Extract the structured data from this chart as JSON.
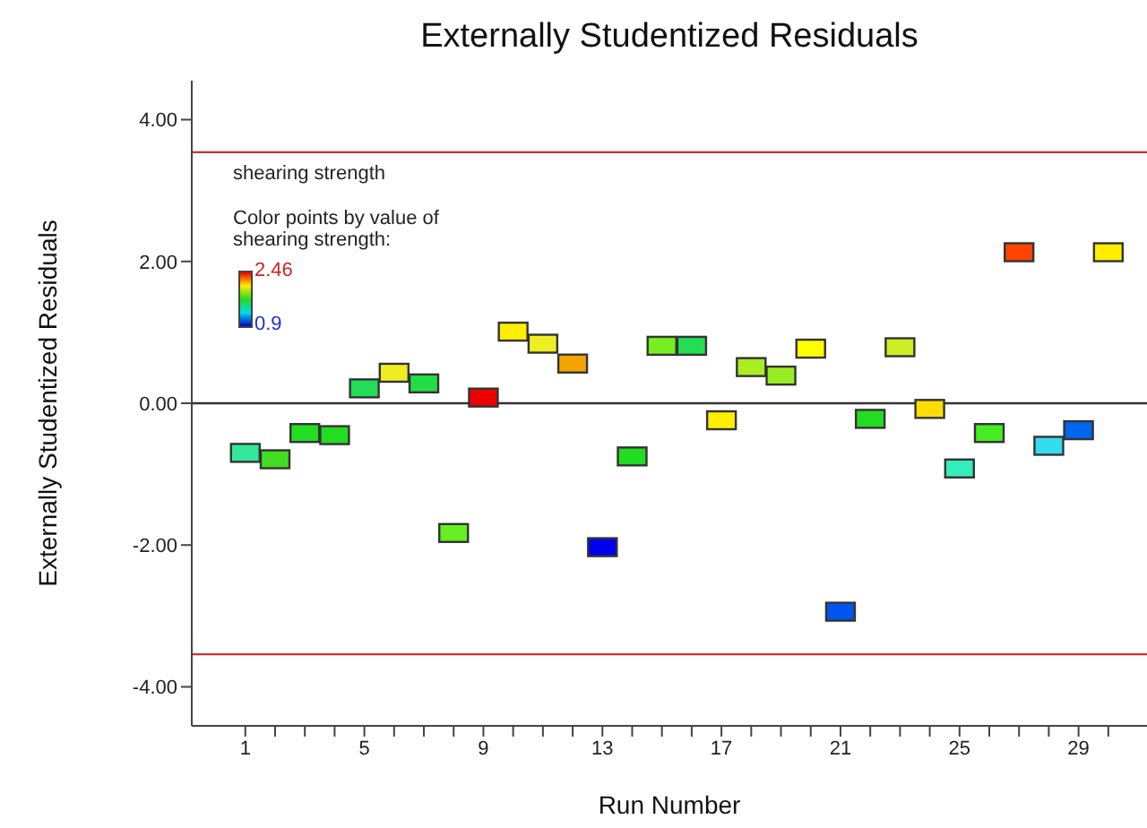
{
  "chart_data": {
    "type": "scatter",
    "title": "Externally Studentized Residuals",
    "xlabel": "Run Number",
    "ylabel": "Externally Studentized Residuals",
    "annotations": [
      "shearing strength",
      "Color points by value of shearing strength:",
      "2.46",
      "0.9"
    ],
    "x": [
      1,
      2,
      3,
      4,
      5,
      6,
      7,
      8,
      9,
      10,
      11,
      12,
      13,
      14,
      15,
      16,
      17,
      18,
      19,
      20,
      21,
      22,
      23,
      24,
      25,
      26,
      27,
      28,
      29,
      30
    ],
    "values": [
      -0.7,
      -0.79,
      -0.42,
      -0.45,
      0.21,
      0.43,
      0.28,
      -1.83,
      0.08,
      1.01,
      0.84,
      0.56,
      -2.03,
      -0.75,
      0.81,
      0.81,
      -0.24,
      0.51,
      0.39,
      0.77,
      -2.94,
      -0.22,
      0.79,
      -0.08,
      -0.92,
      -0.42,
      2.13,
      -0.6,
      -0.38,
      2.13
    ],
    "colors": [
      "#33e89a",
      "#44dd22",
      "#22dd22",
      "#22dd22",
      "#22dd55",
      "#eeee22",
      "#22dd44",
      "#66ee22",
      "#ee0000",
      "#ffee00",
      "#eeee22",
      "#f5a500",
      "#0000ee",
      "#22dd22",
      "#77ee22",
      "#22dd55",
      "#ffee00",
      "#aaee22",
      "#99ee22",
      "#ffff00",
      "#0055ee",
      "#22dd22",
      "#ccee22",
      "#ffdd00",
      "#33eebb",
      "#44ee22",
      "#ff4400",
      "#33ddee",
      "#0066ee",
      "#ffee00"
    ],
    "marker": "square",
    "xlim": [
      -0.8,
      31.3
    ],
    "xticks": [
      1,
      {
        "value": 2,
        "label": null
      },
      {
        "value": 3,
        "label": null
      },
      {
        "value": 4,
        "label": null
      },
      5,
      {
        "value": 6,
        "label": null
      },
      {
        "value": 7,
        "label": null
      },
      {
        "value": 8,
        "label": null
      },
      9,
      {
        "value": 10,
        "label": null
      },
      {
        "value": 11,
        "label": null
      },
      {
        "value": 12,
        "label": null
      },
      13,
      {
        "value": 14,
        "label": null
      },
      {
        "value": 15,
        "label": null
      },
      {
        "value": 16,
        "label": null
      },
      17,
      {
        "value": 18,
        "label": null
      },
      {
        "value": 19,
        "label": null
      },
      {
        "value": 20,
        "label": null
      },
      21,
      {
        "value": 22,
        "label": null
      },
      {
        "value": 23,
        "label": null
      },
      {
        "value": 24,
        "label": null
      },
      25,
      {
        "value": 26,
        "label": null
      },
      {
        "value": 27,
        "label": null
      },
      {
        "value": 28,
        "label": null
      },
      29,
      {
        "value": 30,
        "label": null
      }
    ],
    "ylim": [
      -4.55,
      4.55
    ],
    "yticks": [
      {
        "value": -4,
        "label": "-4.00"
      },
      {
        "value": -2,
        "label": "-2.00"
      },
      {
        "value": 0,
        "label": "0.00"
      },
      {
        "value": 2,
        "label": "2.00"
      },
      {
        "value": 4,
        "label": "4.00"
      }
    ],
    "ref_lines": [
      {
        "axis": "y",
        "value": 3.54,
        "color": "#cc3333"
      },
      {
        "axis": "y",
        "value": 0,
        "color": "#333333"
      },
      {
        "axis": "y",
        "value": -3.54,
        "color": "#cc3333"
      }
    ]
  }
}
